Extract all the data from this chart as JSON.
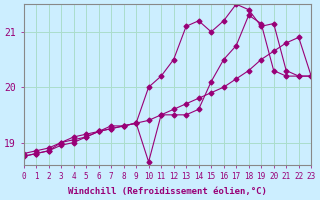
{
  "xlabel": "Windchill (Refroidissement éolien,°C)",
  "ylabel": "",
  "bg_color": "#cceeff",
  "grid_color": "#aaddcc",
  "line_color": "#990077",
  "xlim": [
    0,
    23
  ],
  "ylim": [
    18.6,
    21.5
  ],
  "xticks": [
    0,
    1,
    2,
    3,
    4,
    5,
    6,
    7,
    8,
    9,
    10,
    11,
    12,
    13,
    14,
    15,
    16,
    17,
    18,
    19,
    20,
    21,
    22,
    23
  ],
  "yticks": [
    19,
    20,
    21
  ],
  "series": [
    [
      0.0,
      18.8,
      1.0,
      18.85,
      2.0,
      18.9,
      3.0,
      19.0,
      4.0,
      19.1,
      5.0,
      19.15,
      6.0,
      19.2,
      7.0,
      19.25,
      8.0,
      19.3,
      9.0,
      19.35,
      10.0,
      19.4,
      11.0,
      19.5,
      12.0,
      19.6,
      13.0,
      19.7,
      14.0,
      19.8,
      15.0,
      19.9,
      16.0,
      20.0,
      17.0,
      20.15,
      18.0,
      20.3,
      19.0,
      20.5,
      20.0,
      20.65,
      21.0,
      20.8,
      22.0,
      20.9,
      23.0,
      20.2
    ],
    [
      0.0,
      18.75,
      1.0,
      18.8,
      2.0,
      18.85,
      3.0,
      18.95,
      4.0,
      19.0,
      5.0,
      19.1,
      6.0,
      19.2,
      7.0,
      19.25,
      8.0,
      19.3,
      9.0,
      19.35,
      10.0,
      20.0,
      11.0,
      20.2,
      12.0,
      20.5,
      13.0,
      21.1,
      14.0,
      21.2,
      15.0,
      21.0,
      16.0,
      21.2,
      17.0,
      21.5,
      18.0,
      21.4,
      19.0,
      21.1,
      20.0,
      21.15,
      21.0,
      20.3,
      22.0,
      20.2,
      23.0,
      20.2
    ],
    [
      0.0,
      18.75,
      1.0,
      18.8,
      2.0,
      18.85,
      3.0,
      19.0,
      4.0,
      19.05,
      5.0,
      19.1,
      6.0,
      19.2,
      7.0,
      19.3,
      8.0,
      19.3,
      9.0,
      19.35,
      10.0,
      18.65,
      11.0,
      19.5,
      12.0,
      19.5,
      13.0,
      19.5,
      14.0,
      19.6,
      15.0,
      20.1,
      16.0,
      20.5,
      17.0,
      20.75,
      18.0,
      21.3,
      19.0,
      21.15,
      20.0,
      20.3,
      21.0,
      20.2,
      22.0,
      20.2,
      23.0,
      20.2
    ]
  ]
}
